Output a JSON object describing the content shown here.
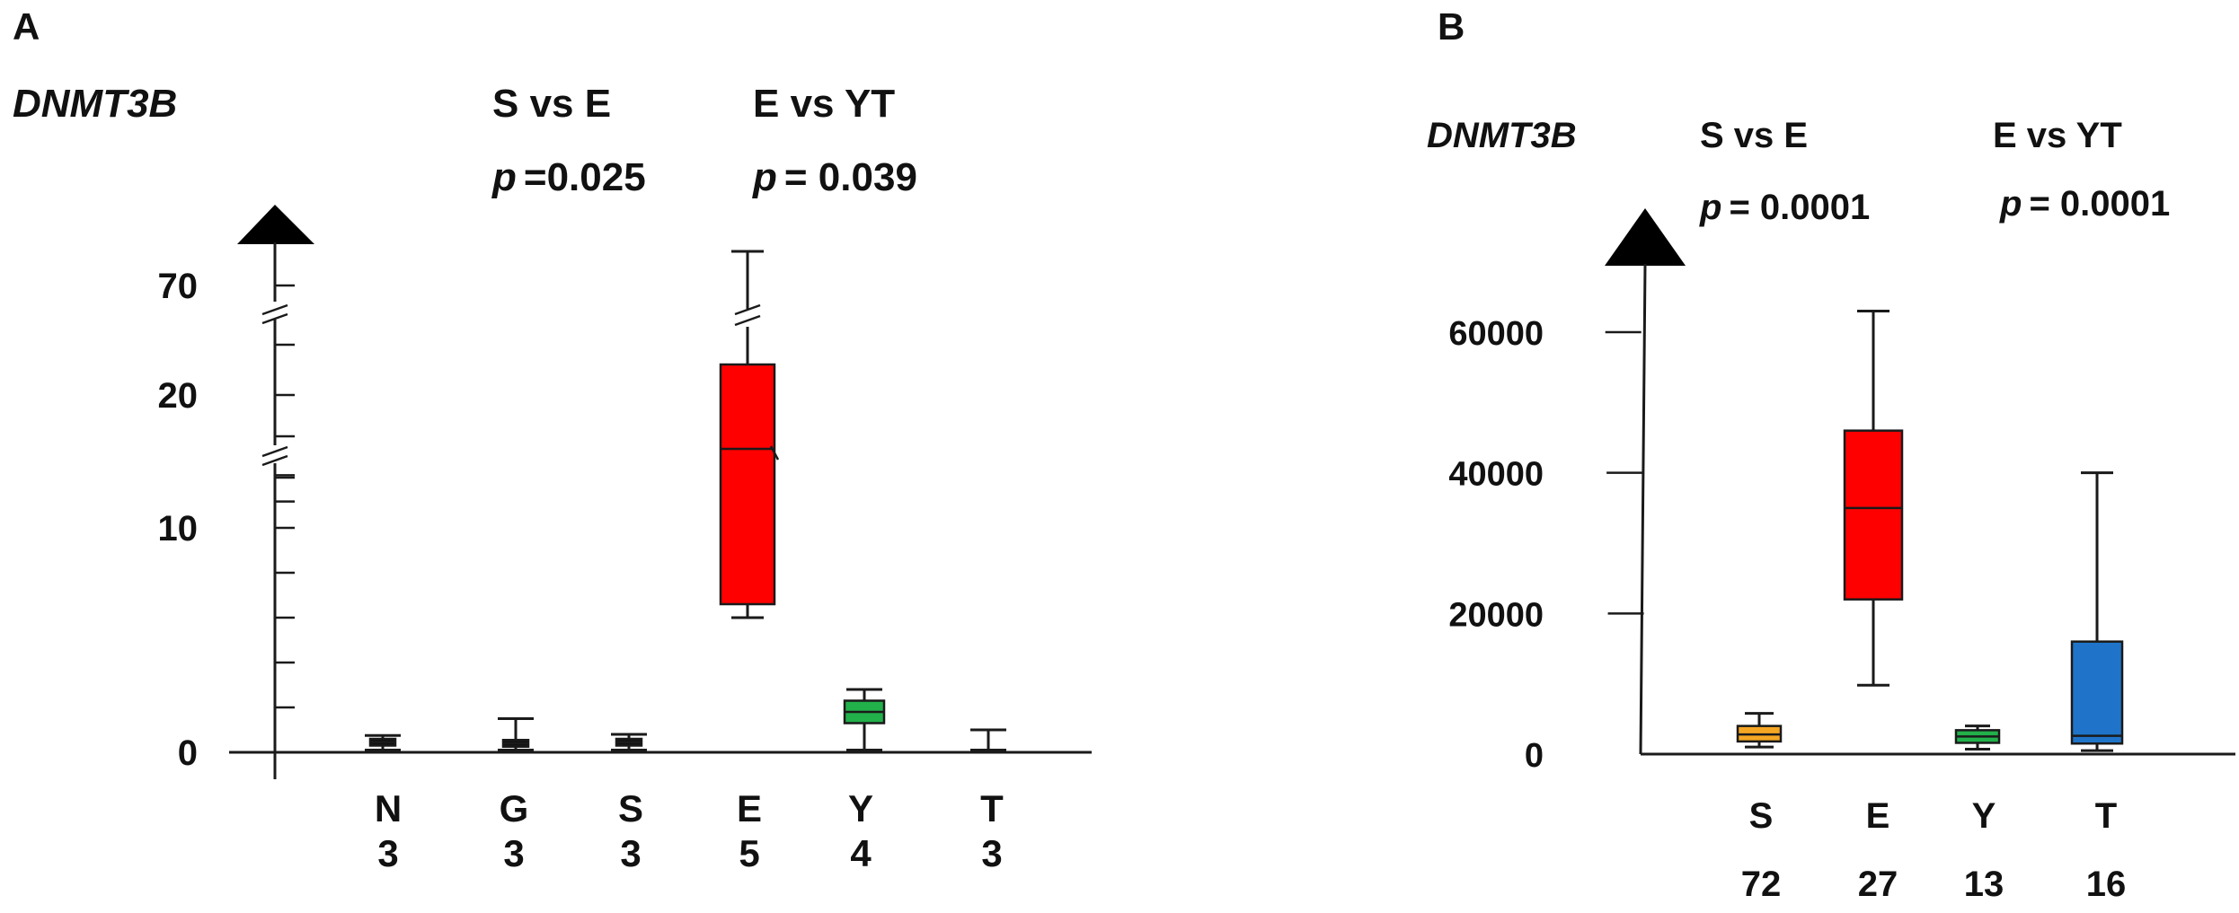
{
  "chart_data": [
    {
      "type": "box",
      "panel_label": "A",
      "ylabel": "DNMT3B",
      "axis": "broken y-axis",
      "y_tick_labels": [
        "0",
        "10",
        "20",
        "70"
      ],
      "y_ticks": [
        0,
        10,
        20,
        70
      ],
      "categories": [
        "N",
        "G",
        "S",
        "E",
        "Y",
        "T"
      ],
      "counts": [
        "3",
        "3",
        "3",
        "5",
        "4",
        "3"
      ],
      "colors": [
        "#111111",
        "#111111",
        "#111111",
        "#ff0000",
        "#22b04a",
        "#111111"
      ],
      "boxes": [
        {
          "category": "N",
          "min": 0.1,
          "q1": 0.3,
          "median": 0.45,
          "q3": 0.6,
          "max": 0.75
        },
        {
          "category": "G",
          "min": 0.1,
          "q1": 0.25,
          "median": 0.4,
          "q3": 0.55,
          "max": 1.5
        },
        {
          "category": "S",
          "min": 0.1,
          "q1": 0.3,
          "median": 0.45,
          "q3": 0.6,
          "max": 0.8
        },
        {
          "category": "E",
          "min": 6,
          "q1": 6.6,
          "median": 16,
          "q3": 22,
          "max": 90
        },
        {
          "category": "Y",
          "min": 0.1,
          "q1": 1.3,
          "median": 1.8,
          "q3": 2.3,
          "max": 2.8
        },
        {
          "category": "T",
          "min": 0.1,
          "q1": 0.1,
          "median": 0.1,
          "q3": 0.1,
          "max": 1.0
        }
      ],
      "annotations": [
        {
          "title": "S vs E",
          "p_label": "p",
          "p_value": "=0.025"
        },
        {
          "title": "E vs YT",
          "p_label": "p",
          "p_value": "= 0.039"
        }
      ]
    },
    {
      "type": "box",
      "panel_label": "B",
      "ylabel": "DNMT3B",
      "y_tick_labels": [
        "0",
        "20000",
        "40000",
        "60000"
      ],
      "y_ticks": [
        0,
        20000,
        40000,
        60000
      ],
      "ylim": [
        0,
        60000
      ],
      "categories": [
        "S",
        "E",
        "Y",
        "T"
      ],
      "counts": [
        "72",
        "27",
        "13",
        "16"
      ],
      "colors": [
        "#f5a623",
        "#ff0000",
        "#22b04a",
        "#1f74c9"
      ],
      "boxes": [
        {
          "category": "S",
          "min": 1000,
          "q1": 1800,
          "median": 2800,
          "q3": 4000,
          "max": 5800
        },
        {
          "category": "E",
          "min": 9800,
          "q1": 22000,
          "median": 35000,
          "q3": 46000,
          "max": 63000
        },
        {
          "category": "Y",
          "min": 700,
          "q1": 1600,
          "median": 2500,
          "q3": 3400,
          "max": 4000
        },
        {
          "category": "T",
          "min": 500,
          "q1": 1500,
          "median": 2600,
          "q3": 16000,
          "max": 40000
        }
      ],
      "annotations": [
        {
          "title": "S vs E",
          "p_label": "p",
          "p_value": "= 0.0001"
        },
        {
          "title": "E vs YT",
          "p_label": "p",
          "p_value": "= 0.0001"
        }
      ]
    }
  ]
}
